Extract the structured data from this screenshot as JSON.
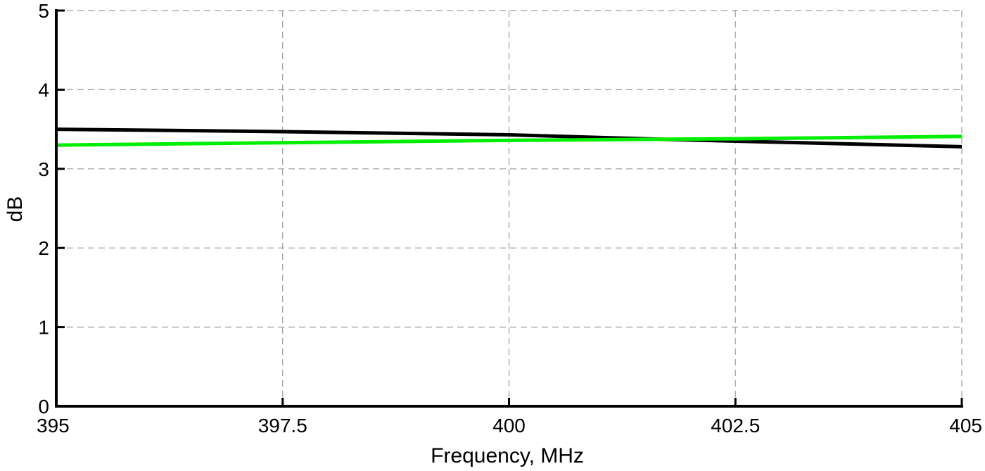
{
  "chart_data": {
    "type": "line",
    "title": "",
    "xlabel": "Frequency, MHz",
    "ylabel": "dB",
    "xlim": [
      395,
      405
    ],
    "ylim": [
      0,
      5
    ],
    "xticks": [
      395,
      397.5,
      400,
      402.5,
      405
    ],
    "xtick_labels": [
      "395",
      "397.5",
      "400",
      "402.5",
      "405"
    ],
    "yticks": [
      0,
      1,
      2,
      3,
      4,
      5
    ],
    "ytick_labels": [
      "0",
      "1",
      "2",
      "3",
      "4",
      "5"
    ],
    "grid": true,
    "series": [
      {
        "color": "#000000",
        "x": [
          395,
          397.5,
          400,
          401.5,
          402.5,
          405
        ],
        "y": [
          3.5,
          3.47,
          3.43,
          3.38,
          3.35,
          3.28
        ]
      },
      {
        "color": "#00ee00",
        "x": [
          395,
          397.5,
          400,
          402.5,
          405
        ],
        "y": [
          3.3,
          3.33,
          3.36,
          3.38,
          3.41
        ]
      }
    ]
  }
}
